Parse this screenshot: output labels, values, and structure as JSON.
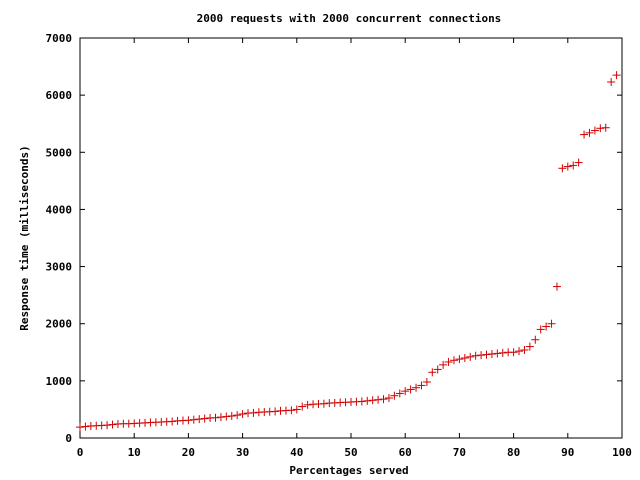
{
  "chart_data": {
    "type": "scatter",
    "title": "2000 requests with 2000 concurrent connections",
    "xlabel": "Percentages served",
    "ylabel": "Response time (milliseconds)",
    "xlim": [
      0,
      100
    ],
    "ylim": [
      0,
      7000
    ],
    "x_ticks": [
      "0",
      "10",
      "20",
      "30",
      "40",
      "50",
      "60",
      "70",
      "80",
      "90",
      "100"
    ],
    "y_ticks": [
      "0",
      "1000",
      "2000",
      "3000",
      "4000",
      "5000",
      "6000",
      "7000"
    ],
    "grid": false,
    "marker_color": "#d00000",
    "series": [
      {
        "x": [
          0,
          1,
          2,
          3,
          4,
          5,
          6,
          7,
          8,
          9,
          10,
          11,
          12,
          13,
          14,
          15,
          16,
          17,
          18,
          19,
          20,
          21,
          22,
          23,
          24,
          25,
          26,
          27,
          28,
          29,
          30,
          31,
          32,
          33,
          34,
          35,
          36,
          37,
          38,
          39,
          40,
          41,
          42,
          43,
          44,
          45,
          46,
          47,
          48,
          49,
          50,
          51,
          52,
          53,
          54,
          55,
          56,
          57,
          58,
          59,
          60,
          61,
          62,
          63,
          64,
          65,
          66,
          67,
          68,
          69,
          70,
          71,
          72,
          73,
          74,
          75,
          76,
          77,
          78,
          79,
          80,
          81,
          82,
          83,
          84,
          85,
          86,
          87,
          88,
          89,
          90,
          91,
          92,
          93,
          94,
          95,
          96,
          97,
          98,
          99
        ],
        "y": [
          190,
          200,
          210,
          215,
          220,
          225,
          235,
          245,
          250,
          250,
          255,
          260,
          265,
          270,
          275,
          280,
          285,
          290,
          300,
          305,
          310,
          320,
          330,
          340,
          350,
          355,
          365,
          375,
          385,
          400,
          420,
          435,
          440,
          450,
          455,
          460,
          465,
          475,
          480,
          485,
          500,
          550,
          580,
          590,
          595,
          600,
          610,
          615,
          620,
          625,
          630,
          635,
          640,
          650,
          660,
          670,
          680,
          700,
          740,
          780,
          820,
          850,
          880,
          920,
          980,
          1150,
          1200,
          1280,
          1330,
          1360,
          1380,
          1400,
          1420,
          1440,
          1450,
          1460,
          1470,
          1480,
          1490,
          1500,
          1500,
          1520,
          1540,
          1600,
          1720,
          1900,
          1950,
          2000,
          2650,
          4720,
          4750,
          4770,
          4820,
          5310,
          5340,
          5380,
          5420,
          5430,
          6230,
          6350
        ]
      }
    ]
  }
}
